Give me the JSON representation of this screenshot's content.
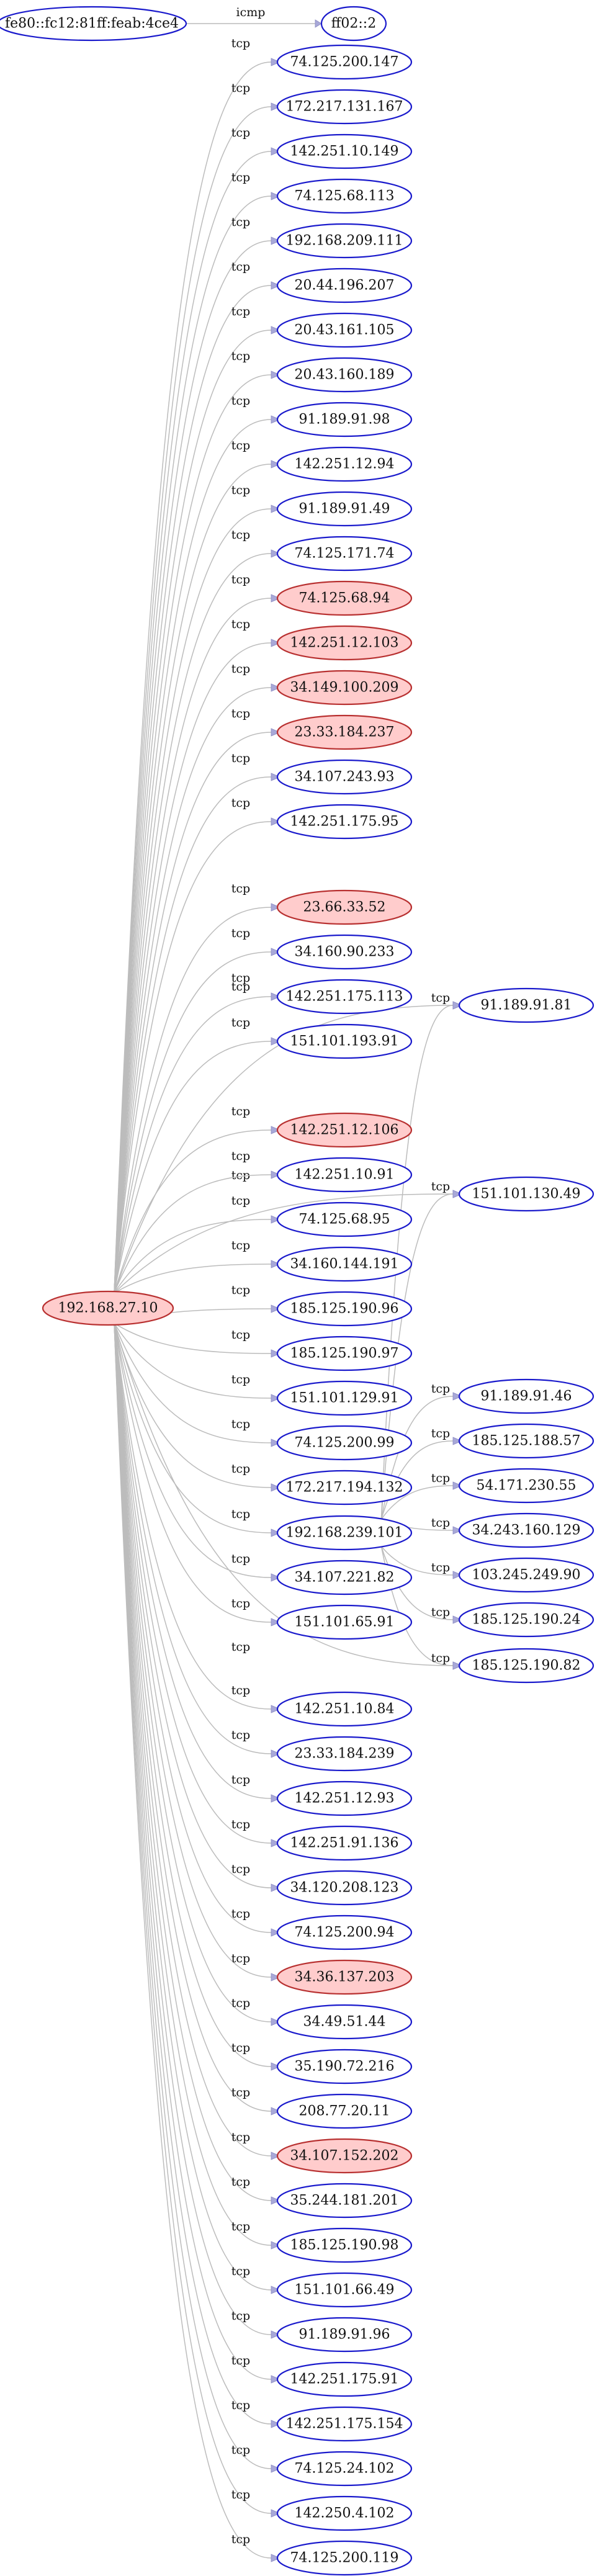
{
  "graph": {
    "nodes": [
      {
        "id": "n0",
        "label": "fe80::fc12:81ff:feab:4ce4",
        "highlight": false
      },
      {
        "id": "n1",
        "label": "ff02::2",
        "highlight": false
      },
      {
        "id": "n2",
        "label": "192.168.27.10",
        "highlight": true
      },
      {
        "id": "n3",
        "label": "74.125.200.147",
        "highlight": false
      },
      {
        "id": "n4",
        "label": "172.217.131.167",
        "highlight": false
      },
      {
        "id": "n5",
        "label": "142.251.10.149",
        "highlight": false
      },
      {
        "id": "n6",
        "label": "74.125.68.113",
        "highlight": false
      },
      {
        "id": "n7",
        "label": "192.168.209.111",
        "highlight": false
      },
      {
        "id": "n8",
        "label": "20.44.196.207",
        "highlight": false
      },
      {
        "id": "n9",
        "label": "20.43.161.105",
        "highlight": false
      },
      {
        "id": "n10",
        "label": "20.43.160.189",
        "highlight": false
      },
      {
        "id": "n11",
        "label": "91.189.91.98",
        "highlight": false
      },
      {
        "id": "n12",
        "label": "142.251.12.94",
        "highlight": false
      },
      {
        "id": "n13",
        "label": "91.189.91.49",
        "highlight": false
      },
      {
        "id": "n14",
        "label": "74.125.171.74",
        "highlight": false
      },
      {
        "id": "n15",
        "label": "74.125.68.94",
        "highlight": true
      },
      {
        "id": "n16",
        "label": "142.251.12.103",
        "highlight": true
      },
      {
        "id": "n17",
        "label": "34.149.100.209",
        "highlight": true
      },
      {
        "id": "n18",
        "label": "23.33.184.237",
        "highlight": true
      },
      {
        "id": "n19",
        "label": "34.107.243.93",
        "highlight": false
      },
      {
        "id": "n20",
        "label": "142.251.175.95",
        "highlight": false
      },
      {
        "id": "n21",
        "label": "23.66.33.52",
        "highlight": true
      },
      {
        "id": "n22",
        "label": "34.160.90.233",
        "highlight": false
      },
      {
        "id": "n23",
        "label": "142.251.175.113",
        "highlight": false
      },
      {
        "id": "n24",
        "label": "151.101.193.91",
        "highlight": false
      },
      {
        "id": "n25",
        "label": "91.189.91.81",
        "highlight": false
      },
      {
        "id": "n26",
        "label": "142.251.12.106",
        "highlight": true
      },
      {
        "id": "n27",
        "label": "142.251.10.91",
        "highlight": false
      },
      {
        "id": "n28",
        "label": "151.101.130.49",
        "highlight": false
      },
      {
        "id": "n29",
        "label": "74.125.68.95",
        "highlight": false
      },
      {
        "id": "n30",
        "label": "34.160.144.191",
        "highlight": false
      },
      {
        "id": "n31",
        "label": "185.125.190.96",
        "highlight": false
      },
      {
        "id": "n32",
        "label": "185.125.190.97",
        "highlight": false
      },
      {
        "id": "n33",
        "label": "151.101.129.91",
        "highlight": false
      },
      {
        "id": "n34",
        "label": "74.125.200.99",
        "highlight": false
      },
      {
        "id": "n35",
        "label": "91.189.91.46",
        "highlight": false
      },
      {
        "id": "n36",
        "label": "172.217.194.132",
        "highlight": false
      },
      {
        "id": "n37",
        "label": "185.125.188.57",
        "highlight": false
      },
      {
        "id": "n38",
        "label": "54.171.230.55",
        "highlight": false
      },
      {
        "id": "n39",
        "label": "192.168.239.101",
        "highlight": false
      },
      {
        "id": "n40",
        "label": "34.243.160.129",
        "highlight": false
      },
      {
        "id": "n41",
        "label": "34.107.221.82",
        "highlight": false
      },
      {
        "id": "n42",
        "label": "103.245.249.90",
        "highlight": false
      },
      {
        "id": "n43",
        "label": "151.101.65.91",
        "highlight": false
      },
      {
        "id": "n44",
        "label": "185.125.190.24",
        "highlight": false
      },
      {
        "id": "n45",
        "label": "185.125.190.82",
        "highlight": false
      },
      {
        "id": "n46",
        "label": "142.251.10.84",
        "highlight": false
      },
      {
        "id": "n47",
        "label": "23.33.184.239",
        "highlight": false
      },
      {
        "id": "n48",
        "label": "142.251.12.93",
        "highlight": false
      },
      {
        "id": "n49",
        "label": "142.251.91.136",
        "highlight": false
      },
      {
        "id": "n50",
        "label": "34.120.208.123",
        "highlight": false
      },
      {
        "id": "n51",
        "label": "74.125.200.94",
        "highlight": false
      },
      {
        "id": "n52",
        "label": "34.36.137.203",
        "highlight": true
      },
      {
        "id": "n53",
        "label": "34.49.51.44",
        "highlight": false
      },
      {
        "id": "n54",
        "label": "35.190.72.216",
        "highlight": false
      },
      {
        "id": "n55",
        "label": "208.77.20.11",
        "highlight": false
      },
      {
        "id": "n56",
        "label": "34.107.152.202",
        "highlight": true
      },
      {
        "id": "n57",
        "label": "35.244.181.201",
        "highlight": false
      },
      {
        "id": "n58",
        "label": "185.125.190.98",
        "highlight": false
      },
      {
        "id": "n59",
        "label": "151.101.66.49",
        "highlight": false
      },
      {
        "id": "n60",
        "label": "91.189.91.96",
        "highlight": false
      },
      {
        "id": "n61",
        "label": "142.251.175.91",
        "highlight": false
      },
      {
        "id": "n62",
        "label": "142.251.175.154",
        "highlight": false
      },
      {
        "id": "n63",
        "label": "74.125.24.102",
        "highlight": false
      },
      {
        "id": "n64",
        "label": "142.250.4.102",
        "highlight": false
      },
      {
        "id": "n65",
        "label": "74.125.200.119",
        "highlight": false
      }
    ],
    "edges": [
      {
        "from": "n0",
        "to": "n1",
        "label": "icmp"
      },
      {
        "from": "n2",
        "to": "n3",
        "label": "tcp"
      },
      {
        "from": "n2",
        "to": "n4",
        "label": "tcp"
      },
      {
        "from": "n2",
        "to": "n5",
        "label": "tcp"
      },
      {
        "from": "n2",
        "to": "n6",
        "label": "tcp"
      },
      {
        "from": "n2",
        "to": "n7",
        "label": "tcp"
      },
      {
        "from": "n2",
        "to": "n8",
        "label": "tcp"
      },
      {
        "from": "n2",
        "to": "n9",
        "label": "tcp"
      },
      {
        "from": "n2",
        "to": "n10",
        "label": "tcp"
      },
      {
        "from": "n2",
        "to": "n11",
        "label": "tcp"
      },
      {
        "from": "n2",
        "to": "n12",
        "label": "tcp"
      },
      {
        "from": "n2",
        "to": "n13",
        "label": "tcp"
      },
      {
        "from": "n2",
        "to": "n14",
        "label": "tcp"
      },
      {
        "from": "n2",
        "to": "n15",
        "label": "tcp"
      },
      {
        "from": "n2",
        "to": "n16",
        "label": "tcp"
      },
      {
        "from": "n2",
        "to": "n17",
        "label": "tcp"
      },
      {
        "from": "n2",
        "to": "n18",
        "label": "tcp"
      },
      {
        "from": "n2",
        "to": "n19",
        "label": "tcp"
      },
      {
        "from": "n2",
        "to": "n20",
        "label": "tcp"
      },
      {
        "from": "n2",
        "to": "n25",
        "label": "tcp"
      },
      {
        "from": "n2",
        "to": "n21",
        "label": "tcp"
      },
      {
        "from": "n2",
        "to": "n22",
        "label": "tcp"
      },
      {
        "from": "n2",
        "to": "n23",
        "label": "tcp"
      },
      {
        "from": "n2",
        "to": "n24",
        "label": "tcp"
      },
      {
        "from": "n2",
        "to": "n28",
        "label": "tcp"
      },
      {
        "from": "n2",
        "to": "n26",
        "label": "tcp"
      },
      {
        "from": "n2",
        "to": "n27",
        "label": "tcp"
      },
      {
        "from": "n2",
        "to": "n29",
        "label": "tcp"
      },
      {
        "from": "n2",
        "to": "n30",
        "label": "tcp"
      },
      {
        "from": "n2",
        "to": "n31",
        "label": "tcp"
      },
      {
        "from": "n2",
        "to": "n32",
        "label": "tcp"
      },
      {
        "from": "n2",
        "to": "n33",
        "label": "tcp"
      },
      {
        "from": "n2",
        "to": "n34",
        "label": "tcp"
      },
      {
        "from": "n2",
        "to": "n36",
        "label": "tcp"
      },
      {
        "from": "n2",
        "to": "n39",
        "label": "tcp"
      },
      {
        "from": "n2",
        "to": "n41",
        "label": "tcp"
      },
      {
        "from": "n2",
        "to": "n43",
        "label": "tcp"
      },
      {
        "from": "n2",
        "to": "n45",
        "label": "tcp"
      },
      {
        "from": "n2",
        "to": "n46",
        "label": "tcp"
      },
      {
        "from": "n2",
        "to": "n47",
        "label": "tcp"
      },
      {
        "from": "n2",
        "to": "n48",
        "label": "tcp"
      },
      {
        "from": "n2",
        "to": "n49",
        "label": "tcp"
      },
      {
        "from": "n2",
        "to": "n50",
        "label": "tcp"
      },
      {
        "from": "n2",
        "to": "n51",
        "label": "tcp"
      },
      {
        "from": "n2",
        "to": "n52",
        "label": "tcp"
      },
      {
        "from": "n2",
        "to": "n53",
        "label": "tcp"
      },
      {
        "from": "n2",
        "to": "n54",
        "label": "tcp"
      },
      {
        "from": "n2",
        "to": "n55",
        "label": "tcp"
      },
      {
        "from": "n2",
        "to": "n56",
        "label": "tcp"
      },
      {
        "from": "n2",
        "to": "n57",
        "label": "tcp"
      },
      {
        "from": "n2",
        "to": "n58",
        "label": "tcp"
      },
      {
        "from": "n2",
        "to": "n59",
        "label": "tcp"
      },
      {
        "from": "n2",
        "to": "n60",
        "label": "tcp"
      },
      {
        "from": "n2",
        "to": "n61",
        "label": "tcp"
      },
      {
        "from": "n2",
        "to": "n62",
        "label": "tcp"
      },
      {
        "from": "n2",
        "to": "n63",
        "label": "tcp"
      },
      {
        "from": "n2",
        "to": "n64",
        "label": "tcp"
      },
      {
        "from": "n2",
        "to": "n65",
        "label": "tcp"
      },
      {
        "from": "n39",
        "to": "n25",
        "label": "tcp"
      },
      {
        "from": "n39",
        "to": "n28",
        "label": "tcp"
      },
      {
        "from": "n39",
        "to": "n35",
        "label": "tcp"
      },
      {
        "from": "n39",
        "to": "n37",
        "label": "tcp"
      },
      {
        "from": "n39",
        "to": "n38",
        "label": "tcp"
      },
      {
        "from": "n39",
        "to": "n40",
        "label": "tcp"
      },
      {
        "from": "n39",
        "to": "n42",
        "label": "tcp"
      },
      {
        "from": "n39",
        "to": "n44",
        "label": "tcp"
      },
      {
        "from": "n39",
        "to": "n45",
        "label": "tcp"
      }
    ]
  }
}
